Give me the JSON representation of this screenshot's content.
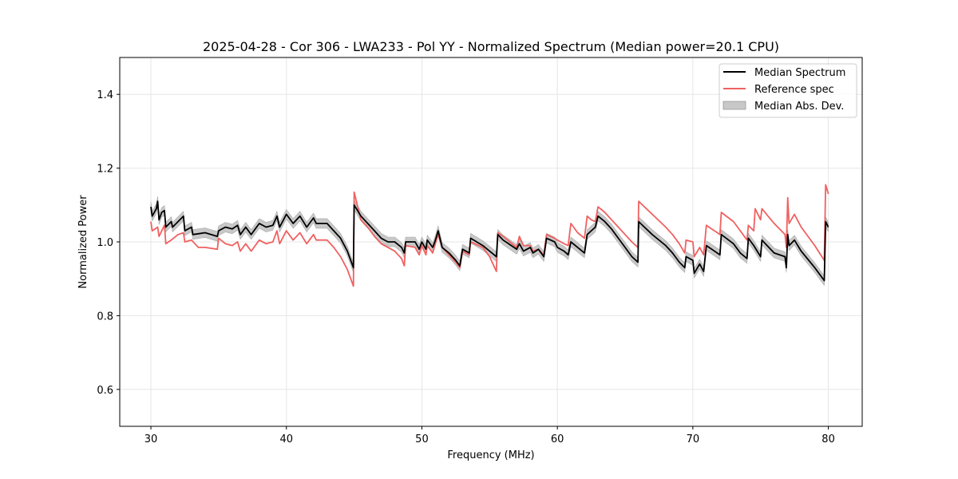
{
  "chart_data": {
    "type": "line",
    "title": "2025-04-28 - Cor 306 - LWA233 - Pol YY - Normalized Spectrum (Median power=20.1 CPU)",
    "xlabel": "Frequency (MHz)",
    "ylabel": "Normalized Power",
    "xlim": [
      27.7,
      82.5
    ],
    "ylim": [
      0.5,
      1.5
    ],
    "xticks": [
      30,
      40,
      50,
      60,
      70,
      80
    ],
    "yticks": [
      0.6,
      0.8,
      1.0,
      1.2,
      1.4
    ],
    "ytick_labels": [
      "0.6",
      "0.8",
      "1.0",
      "1.2",
      "1.4"
    ],
    "grid": true,
    "legend_position": "top-right",
    "mad_half_width": 0.013,
    "series": [
      {
        "name": "Median Spectrum",
        "color": "#000000",
        "points": [
          [
            30.0,
            1.095
          ],
          [
            30.1,
            1.07
          ],
          [
            30.4,
            1.09
          ],
          [
            30.5,
            1.11
          ],
          [
            30.6,
            1.06
          ],
          [
            30.8,
            1.08
          ],
          [
            31.0,
            1.085
          ],
          [
            31.1,
            1.04
          ],
          [
            31.5,
            1.055
          ],
          [
            31.6,
            1.04
          ],
          [
            32.0,
            1.055
          ],
          [
            32.4,
            1.07
          ],
          [
            32.5,
            1.03
          ],
          [
            33.0,
            1.04
          ],
          [
            33.1,
            1.02
          ],
          [
            34.0,
            1.025
          ],
          [
            34.9,
            1.015
          ],
          [
            35.0,
            1.03
          ],
          [
            35.5,
            1.04
          ],
          [
            36.0,
            1.035
          ],
          [
            36.4,
            1.045
          ],
          [
            36.6,
            1.02
          ],
          [
            37.0,
            1.04
          ],
          [
            37.4,
            1.02
          ],
          [
            38.0,
            1.05
          ],
          [
            38.5,
            1.04
          ],
          [
            39.0,
            1.045
          ],
          [
            39.3,
            1.07
          ],
          [
            39.5,
            1.04
          ],
          [
            40.0,
            1.075
          ],
          [
            40.5,
            1.05
          ],
          [
            41.0,
            1.07
          ],
          [
            41.5,
            1.04
          ],
          [
            42.0,
            1.065
          ],
          [
            42.2,
            1.05
          ],
          [
            43.0,
            1.05
          ],
          [
            43.5,
            1.03
          ],
          [
            44.0,
            1.01
          ],
          [
            44.5,
            0.975
          ],
          [
            44.95,
            0.93
          ],
          [
            45.0,
            1.1
          ],
          [
            45.5,
            1.07
          ],
          [
            46.0,
            1.05
          ],
          [
            46.5,
            1.03
          ],
          [
            47.0,
            1.01
          ],
          [
            47.5,
            1.0
          ],
          [
            48.0,
            1.0
          ],
          [
            48.5,
            0.985
          ],
          [
            48.7,
            0.97
          ],
          [
            48.8,
            1.0
          ],
          [
            49.5,
            1.0
          ],
          [
            49.8,
            0.98
          ],
          [
            50.0,
            1.0
          ],
          [
            50.3,
            0.98
          ],
          [
            50.4,
            1.005
          ],
          [
            50.8,
            0.985
          ],
          [
            51.0,
            1.005
          ],
          [
            51.2,
            1.03
          ],
          [
            51.5,
            0.985
          ],
          [
            52.0,
            0.97
          ],
          [
            52.5,
            0.95
          ],
          [
            52.8,
            0.935
          ],
          [
            53.0,
            0.98
          ],
          [
            53.5,
            0.97
          ],
          [
            53.6,
            1.01
          ],
          [
            54.5,
            0.99
          ],
          [
            55.0,
            0.975
          ],
          [
            55.5,
            0.96
          ],
          [
            55.6,
            1.02
          ],
          [
            56.0,
            1.005
          ],
          [
            57.0,
            0.98
          ],
          [
            57.2,
            0.995
          ],
          [
            57.5,
            0.975
          ],
          [
            58.0,
            0.985
          ],
          [
            58.2,
            0.97
          ],
          [
            58.6,
            0.98
          ],
          [
            59.0,
            0.96
          ],
          [
            59.2,
            1.01
          ],
          [
            59.8,
            1.0
          ],
          [
            60.0,
            0.985
          ],
          [
            60.5,
            0.975
          ],
          [
            60.8,
            0.965
          ],
          [
            61.0,
            1.0
          ],
          [
            61.5,
            0.985
          ],
          [
            62.0,
            0.97
          ],
          [
            62.2,
            1.02
          ],
          [
            62.5,
            1.03
          ],
          [
            62.8,
            1.04
          ],
          [
            63.0,
            1.07
          ],
          [
            63.5,
            1.055
          ],
          [
            64.0,
            1.035
          ],
          [
            64.5,
            1.01
          ],
          [
            65.0,
            0.985
          ],
          [
            65.5,
            0.96
          ],
          [
            65.95,
            0.945
          ],
          [
            66.0,
            1.055
          ],
          [
            67.0,
            1.02
          ],
          [
            68.0,
            0.99
          ],
          [
            68.5,
            0.97
          ],
          [
            69.0,
            0.945
          ],
          [
            69.4,
            0.93
          ],
          [
            69.5,
            0.96
          ],
          [
            70.0,
            0.95
          ],
          [
            70.1,
            0.915
          ],
          [
            70.5,
            0.94
          ],
          [
            70.8,
            0.92
          ],
          [
            71.0,
            0.99
          ],
          [
            72.0,
            0.965
          ],
          [
            72.1,
            1.02
          ],
          [
            73.0,
            0.995
          ],
          [
            73.5,
            0.97
          ],
          [
            74.0,
            0.955
          ],
          [
            74.1,
            1.01
          ],
          [
            74.5,
            0.99
          ],
          [
            75.0,
            0.96
          ],
          [
            75.1,
            1.005
          ],
          [
            76.0,
            0.97
          ],
          [
            76.8,
            0.96
          ],
          [
            76.9,
            0.93
          ],
          [
            77.0,
            1.02
          ],
          [
            77.1,
            0.99
          ],
          [
            77.5,
            1.005
          ],
          [
            78.0,
            0.975
          ],
          [
            79.0,
            0.93
          ],
          [
            79.7,
            0.895
          ],
          [
            79.8,
            1.055
          ],
          [
            80.0,
            1.04
          ]
        ]
      },
      {
        "name": "Reference spec",
        "color": "#f06060",
        "points": [
          [
            30.0,
            1.055
          ],
          [
            30.1,
            1.03
          ],
          [
            30.5,
            1.04
          ],
          [
            30.6,
            1.015
          ],
          [
            31.0,
            1.045
          ],
          [
            31.1,
            0.995
          ],
          [
            31.5,
            1.005
          ],
          [
            32.0,
            1.02
          ],
          [
            32.4,
            1.025
          ],
          [
            32.5,
            1.0
          ],
          [
            33.0,
            1.005
          ],
          [
            33.5,
            0.985
          ],
          [
            34.0,
            0.985
          ],
          [
            34.9,
            0.98
          ],
          [
            35.0,
            1.01
          ],
          [
            35.5,
            0.995
          ],
          [
            36.0,
            0.99
          ],
          [
            36.4,
            1.0
          ],
          [
            36.6,
            0.975
          ],
          [
            37.0,
            0.995
          ],
          [
            37.4,
            0.975
          ],
          [
            38.0,
            1.005
          ],
          [
            38.5,
            0.995
          ],
          [
            39.0,
            1.0
          ],
          [
            39.3,
            1.03
          ],
          [
            39.5,
            0.995
          ],
          [
            40.0,
            1.03
          ],
          [
            40.5,
            1.005
          ],
          [
            41.0,
            1.025
          ],
          [
            41.5,
            0.995
          ],
          [
            42.0,
            1.02
          ],
          [
            42.2,
            1.005
          ],
          [
            43.0,
            1.005
          ],
          [
            43.5,
            0.985
          ],
          [
            44.0,
            0.96
          ],
          [
            44.5,
            0.925
          ],
          [
            44.95,
            0.88
          ],
          [
            45.0,
            1.135
          ],
          [
            45.5,
            1.06
          ],
          [
            46.0,
            1.04
          ],
          [
            46.5,
            1.015
          ],
          [
            47.0,
            0.995
          ],
          [
            47.5,
            0.985
          ],
          [
            48.0,
            0.975
          ],
          [
            48.5,
            0.955
          ],
          [
            48.7,
            0.935
          ],
          [
            48.8,
            0.99
          ],
          [
            49.5,
            0.985
          ],
          [
            49.8,
            0.965
          ],
          [
            50.0,
            0.99
          ],
          [
            50.3,
            0.965
          ],
          [
            50.4,
            0.99
          ],
          [
            50.8,
            0.97
          ],
          [
            51.0,
            0.995
          ],
          [
            51.2,
            1.02
          ],
          [
            51.5,
            0.985
          ],
          [
            52.0,
            0.965
          ],
          [
            52.5,
            0.945
          ],
          [
            52.8,
            0.93
          ],
          [
            53.0,
            0.975
          ],
          [
            53.5,
            0.965
          ],
          [
            53.6,
            1.0
          ],
          [
            54.5,
            0.985
          ],
          [
            55.0,
            0.96
          ],
          [
            55.5,
            0.92
          ],
          [
            55.6,
            1.025
          ],
          [
            56.0,
            1.015
          ],
          [
            57.0,
            0.985
          ],
          [
            57.2,
            1.015
          ],
          [
            57.5,
            0.99
          ],
          [
            58.0,
            0.99
          ],
          [
            58.2,
            0.975
          ],
          [
            58.6,
            0.98
          ],
          [
            59.0,
            0.965
          ],
          [
            59.2,
            1.02
          ],
          [
            59.8,
            1.01
          ],
          [
            60.0,
            1.005
          ],
          [
            60.5,
            0.995
          ],
          [
            60.8,
            0.99
          ],
          [
            61.0,
            1.05
          ],
          [
            61.5,
            1.025
          ],
          [
            62.0,
            1.01
          ],
          [
            62.2,
            1.07
          ],
          [
            62.5,
            1.06
          ],
          [
            62.8,
            1.055
          ],
          [
            63.0,
            1.095
          ],
          [
            63.5,
            1.08
          ],
          [
            64.0,
            1.06
          ],
          [
            64.5,
            1.04
          ],
          [
            65.0,
            1.02
          ],
          [
            65.5,
            1.0
          ],
          [
            65.95,
            0.985
          ],
          [
            66.0,
            1.11
          ],
          [
            67.0,
            1.075
          ],
          [
            68.0,
            1.04
          ],
          [
            68.5,
            1.02
          ],
          [
            69.0,
            0.995
          ],
          [
            69.4,
            0.97
          ],
          [
            69.5,
            1.005
          ],
          [
            70.0,
            1.0
          ],
          [
            70.1,
            0.96
          ],
          [
            70.5,
            0.985
          ],
          [
            70.8,
            0.965
          ],
          [
            71.0,
            1.045
          ],
          [
            72.0,
            1.02
          ],
          [
            72.1,
            1.08
          ],
          [
            73.0,
            1.055
          ],
          [
            73.5,
            1.03
          ],
          [
            74.0,
            1.005
          ],
          [
            74.1,
            1.045
          ],
          [
            74.5,
            1.03
          ],
          [
            74.6,
            1.09
          ],
          [
            75.0,
            1.06
          ],
          [
            75.1,
            1.09
          ],
          [
            76.0,
            1.05
          ],
          [
            76.8,
            1.02
          ],
          [
            76.9,
            0.985
          ],
          [
            77.0,
            1.12
          ],
          [
            77.1,
            1.05
          ],
          [
            77.5,
            1.075
          ],
          [
            78.0,
            1.04
          ],
          [
            79.0,
            0.99
          ],
          [
            79.7,
            0.95
          ],
          [
            79.8,
            1.155
          ],
          [
            80.0,
            1.13
          ]
        ]
      }
    ],
    "legend": [
      {
        "label": "Median Spectrum",
        "kind": "line",
        "color": "#000000"
      },
      {
        "label": "Reference spec",
        "kind": "line",
        "color": "#f06060"
      },
      {
        "label": "Median Abs. Dev.",
        "kind": "band",
        "color": "#c8c8c8"
      }
    ]
  }
}
